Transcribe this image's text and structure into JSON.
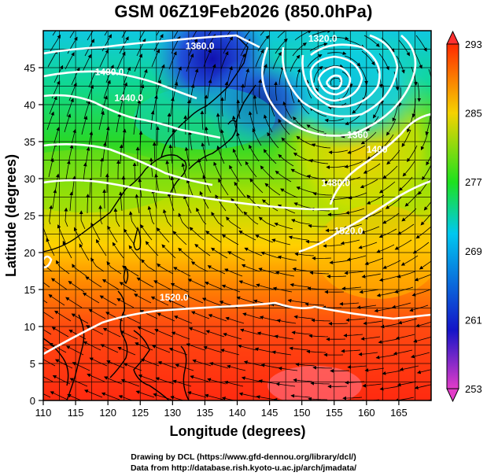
{
  "title": "GSM 06Z19Feb2026 (850.0hPa)",
  "footer": {
    "line1": "Drawing by DCL (https://www.gfd-dennou.org/library/dcl/)",
    "line2": "Data from http://database.rish.kyoto-u.ac.jp/arch/jmadata/"
  },
  "axes": {
    "xlabel": "Longitude (degrees)",
    "ylabel": "Latitude  (degrees)",
    "x_ticks": [
      "110",
      "115",
      "120",
      "125",
      "130",
      "135",
      "140",
      "145",
      "150",
      "155",
      "160",
      "165"
    ],
    "y_ticks": [
      "0",
      "5",
      "10",
      "15",
      "20",
      "25",
      "30",
      "35",
      "40",
      "45"
    ],
    "xlim": [
      110,
      170
    ],
    "ylim": [
      0,
      50
    ]
  },
  "colorbar": {
    "labels": [
      "293",
      "285",
      "277",
      "269",
      "261",
      "253"
    ],
    "range": [
      253,
      293
    ],
    "colors": [
      "#e23cc8",
      "#1414c8",
      "#00c8f0",
      "#1ee11e",
      "#f5d200",
      "#ff2a00"
    ]
  },
  "contour_labels": [
    {
      "text": "1360.0",
      "lon": 132,
      "lat": 47.5
    },
    {
      "text": "1400.0",
      "lon": 118,
      "lat": 44
    },
    {
      "text": "1440.0",
      "lon": 121,
      "lat": 40.5
    },
    {
      "text": "1320.0",
      "lon": 151,
      "lat": 48.5
    },
    {
      "text": "1360",
      "lon": 157,
      "lat": 35.5
    },
    {
      "text": "1400",
      "lon": 160,
      "lat": 33.5
    },
    {
      "text": "1480.0",
      "lon": 153,
      "lat": 29
    },
    {
      "text": "1520.0",
      "lon": 155,
      "lat": 22.5
    },
    {
      "text": "1520.0",
      "lon": 128,
      "lat": 13.5
    }
  ]
}
